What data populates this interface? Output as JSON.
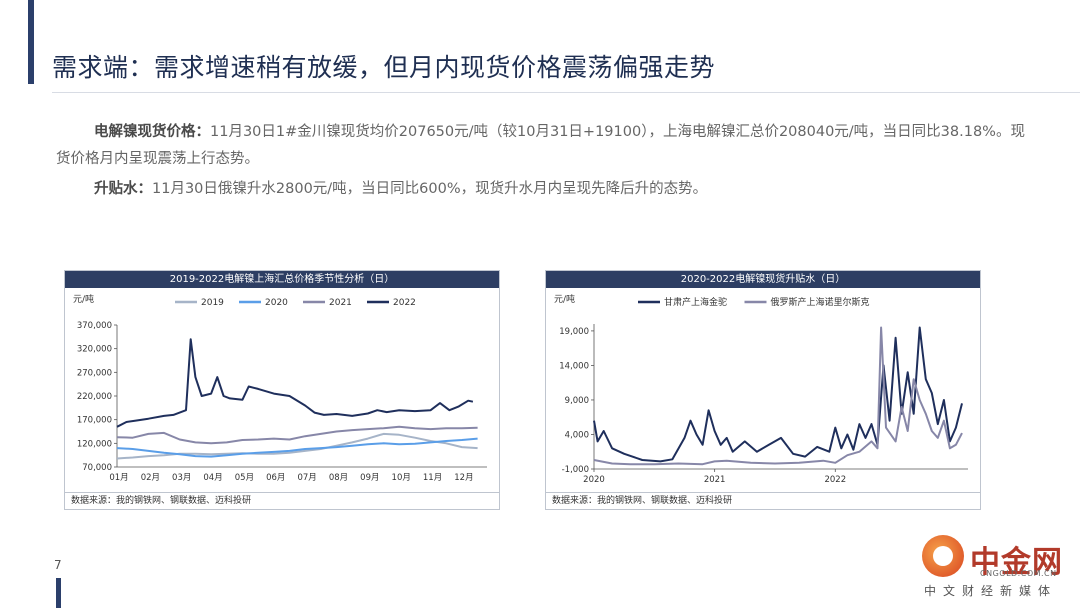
{
  "slide": {
    "title": "需求端：需求增速稍有放缓，但月内现货价格震荡偏强走势",
    "page_number": "7"
  },
  "paragraphs": [
    {
      "label": "电解镍现货价格：",
      "text": "11月30日1#金川镍现货均价207650元/吨（较10月31日+19100），上海电解镍汇总价208040元/吨，当日同比38.18%。现货价格月内呈现震荡上行态势。"
    },
    {
      "label": "升贴水：",
      "text": "11月30日俄镍升水2800元/吨，当日同比600%，现货升水月内呈现先降后升的态势。"
    }
  ],
  "logo": {
    "text": "中金网",
    "domain": "CNGOLD.COM.CN",
    "subtitle": "中文财经新媒体"
  },
  "colors": {
    "header_bg": "#2d3e63",
    "accent": "#2b3f6b"
  },
  "chart_data": [
    {
      "type": "line",
      "title": "2019-2022电解镍上海汇总价格季节性分析（日）",
      "ylabel": "元/吨",
      "source": "数据来源：我的钢铁网、钢联数据、迈科投研",
      "ylim": [
        70000,
        370000
      ],
      "yticks": [
        "370,000",
        "320,000",
        "270,000",
        "220,000",
        "170,000",
        "120,000",
        "70,000"
      ],
      "ytick_values": [
        370000,
        320000,
        270000,
        220000,
        170000,
        120000,
        70000
      ],
      "categories": [
        "01月",
        "02月",
        "03月",
        "04月",
        "05月",
        "06月",
        "07月",
        "08月",
        "09月",
        "10月",
        "11月",
        "12月"
      ],
      "series": [
        {
          "name": "2019",
          "color": "#a6b4c8",
          "values": [
            [
              0,
              88000
            ],
            [
              0.5,
              90000
            ],
            [
              1,
              93000
            ],
            [
              1.5,
              95000
            ],
            [
              2,
              98000
            ],
            [
              2.5,
              98000
            ],
            [
              3,
              97000
            ],
            [
              3.5,
              98000
            ],
            [
              4,
              99000
            ],
            [
              4.5,
              98000
            ],
            [
              5,
              98000
            ],
            [
              5.5,
              100000
            ],
            [
              6,
              104000
            ],
            [
              6.5,
              108000
            ],
            [
              7,
              115000
            ],
            [
              7.5,
              122000
            ],
            [
              8,
              130000
            ],
            [
              8.5,
              140000
            ],
            [
              9,
              138000
            ],
            [
              9.5,
              132000
            ],
            [
              10,
              125000
            ],
            [
              10.5,
              120000
            ],
            [
              11,
              112000
            ],
            [
              11.5,
              110000
            ]
          ]
        },
        {
          "name": "2020",
          "color": "#5a9ee8",
          "values": [
            [
              0,
              110000
            ],
            [
              0.5,
              108000
            ],
            [
              1,
              104000
            ],
            [
              1.5,
              100000
            ],
            [
              2,
              97000
            ],
            [
              2.5,
              93000
            ],
            [
              3,
              92000
            ],
            [
              3.5,
              95000
            ],
            [
              4,
              98000
            ],
            [
              4.5,
              100000
            ],
            [
              5,
              102000
            ],
            [
              5.5,
              104000
            ],
            [
              6,
              108000
            ],
            [
              6.5,
              110000
            ],
            [
              7,
              112000
            ],
            [
              7.5,
              115000
            ],
            [
              8,
              118000
            ],
            [
              8.5,
              120000
            ],
            [
              9,
              118000
            ],
            [
              9.5,
              119000
            ],
            [
              10,
              122000
            ],
            [
              10.5,
              125000
            ],
            [
              11,
              127000
            ],
            [
              11.5,
              130000
            ]
          ]
        },
        {
          "name": "2021",
          "color": "#8787a8",
          "values": [
            [
              0,
              133000
            ],
            [
              0.5,
              132000
            ],
            [
              1,
              140000
            ],
            [
              1.5,
              142000
            ],
            [
              2,
              128000
            ],
            [
              2.5,
              122000
            ],
            [
              3,
              120000
            ],
            [
              3.5,
              122000
            ],
            [
              4,
              127000
            ],
            [
              4.5,
              128000
            ],
            [
              5,
              130000
            ],
            [
              5.5,
              128000
            ],
            [
              6,
              135000
            ],
            [
              6.5,
              140000
            ],
            [
              7,
              145000
            ],
            [
              7.5,
              148000
            ],
            [
              8,
              150000
            ],
            [
              8.5,
              152000
            ],
            [
              9,
              155000
            ],
            [
              9.5,
              152000
            ],
            [
              10,
              150000
            ],
            [
              10.5,
              152000
            ],
            [
              11,
              152000
            ],
            [
              11.5,
              153000
            ]
          ]
        },
        {
          "name": "2022",
          "color": "#1f2f5c",
          "values": [
            [
              0,
              155000
            ],
            [
              0.3,
              165000
            ],
            [
              0.6,
              168000
            ],
            [
              1,
              172000
            ],
            [
              1.5,
              178000
            ],
            [
              1.8,
              180000
            ],
            [
              2,
              185000
            ],
            [
              2.2,
              190000
            ],
            [
              2.35,
              340000
            ],
            [
              2.5,
              260000
            ],
            [
              2.7,
              220000
            ],
            [
              3,
              225000
            ],
            [
              3.2,
              260000
            ],
            [
              3.4,
              220000
            ],
            [
              3.6,
              215000
            ],
            [
              4,
              212000
            ],
            [
              4.2,
              240000
            ],
            [
              4.5,
              235000
            ],
            [
              5,
              225000
            ],
            [
              5.5,
              220000
            ],
            [
              6,
              200000
            ],
            [
              6.3,
              185000
            ],
            [
              6.6,
              180000
            ],
            [
              7,
              182000
            ],
            [
              7.5,
              178000
            ],
            [
              8,
              183000
            ],
            [
              8.3,
              190000
            ],
            [
              8.6,
              186000
            ],
            [
              9,
              190000
            ],
            [
              9.5,
              188000
            ],
            [
              10,
              190000
            ],
            [
              10.3,
              205000
            ],
            [
              10.6,
              190000
            ],
            [
              10.9,
              198000
            ],
            [
              11.2,
              210000
            ],
            [
              11.35,
              208000
            ]
          ]
        }
      ]
    },
    {
      "type": "line",
      "title": "2020-2022电解镍现货升贴水（日）",
      "ylabel": "元/吨",
      "source": "数据来源：我的钢铁网、钢联数据、迈科投研",
      "ylim": [
        -1000,
        20000
      ],
      "yticks": [
        "19,000",
        "14,000",
        "9,000",
        "4,000",
        "-1,000"
      ],
      "ytick_values": [
        19000,
        14000,
        9000,
        4000,
        -1000
      ],
      "x_labels": [
        {
          "label": "2020",
          "x": 0
        },
        {
          "label": "2021",
          "x": 1
        },
        {
          "label": "2022",
          "x": 2
        }
      ],
      "xlim": [
        0,
        3.1
      ],
      "series": [
        {
          "name": "甘肃产上海金驼",
          "color": "#1f2f5c",
          "values": [
            [
              0,
              6000
            ],
            [
              0.03,
              3000
            ],
            [
              0.08,
              4500
            ],
            [
              0.15,
              2000
            ],
            [
              0.25,
              1200
            ],
            [
              0.4,
              300
            ],
            [
              0.55,
              100
            ],
            [
              0.65,
              400
            ],
            [
              0.75,
              3500
            ],
            [
              0.8,
              6000
            ],
            [
              0.85,
              4000
            ],
            [
              0.9,
              2500
            ],
            [
              0.95,
              7500
            ],
            [
              1.0,
              4500
            ],
            [
              1.05,
              2500
            ],
            [
              1.1,
              3500
            ],
            [
              1.15,
              1500
            ],
            [
              1.25,
              3000
            ],
            [
              1.35,
              1500
            ],
            [
              1.45,
              2500
            ],
            [
              1.55,
              3500
            ],
            [
              1.65,
              1200
            ],
            [
              1.75,
              800
            ],
            [
              1.85,
              2200
            ],
            [
              1.95,
              1500
            ],
            [
              2.0,
              5000
            ],
            [
              2.05,
              2000
            ],
            [
              2.1,
              4000
            ],
            [
              2.15,
              1800
            ],
            [
              2.2,
              5500
            ],
            [
              2.25,
              3500
            ],
            [
              2.3,
              5500
            ],
            [
              2.35,
              2500
            ],
            [
              2.4,
              14000
            ],
            [
              2.45,
              6000
            ],
            [
              2.5,
              18000
            ],
            [
              2.55,
              7000
            ],
            [
              2.6,
              13000
            ],
            [
              2.65,
              7000
            ],
            [
              2.7,
              19500
            ],
            [
              2.75,
              12000
            ],
            [
              2.8,
              10000
            ],
            [
              2.85,
              5500
            ],
            [
              2.9,
              9000
            ],
            [
              2.95,
              3000
            ],
            [
              3.0,
              5000
            ],
            [
              3.05,
              8500
            ]
          ]
        },
        {
          "name": "俄罗斯产上海诺里尔斯克",
          "color": "#8787a8",
          "values": [
            [
              0,
              300
            ],
            [
              0.15,
              -200
            ],
            [
              0.3,
              -300
            ],
            [
              0.5,
              -300
            ],
            [
              0.7,
              -200
            ],
            [
              0.9,
              -300
            ],
            [
              1.0,
              100
            ],
            [
              1.1,
              200
            ],
            [
              1.3,
              -100
            ],
            [
              1.5,
              -200
            ],
            [
              1.7,
              -100
            ],
            [
              1.9,
              200
            ],
            [
              2.0,
              -100
            ],
            [
              2.1,
              1000
            ],
            [
              2.2,
              1500
            ],
            [
              2.3,
              3000
            ],
            [
              2.35,
              2000
            ],
            [
              2.38,
              19500
            ],
            [
              2.42,
              5000
            ],
            [
              2.5,
              3000
            ],
            [
              2.55,
              8000
            ],
            [
              2.6,
              4500
            ],
            [
              2.65,
              12000
            ],
            [
              2.7,
              9000
            ],
            [
              2.75,
              7000
            ],
            [
              2.8,
              4500
            ],
            [
              2.85,
              3500
            ],
            [
              2.9,
              6000
            ],
            [
              2.95,
              2000
            ],
            [
              3.0,
              2500
            ],
            [
              3.05,
              4200
            ]
          ]
        }
      ]
    }
  ]
}
